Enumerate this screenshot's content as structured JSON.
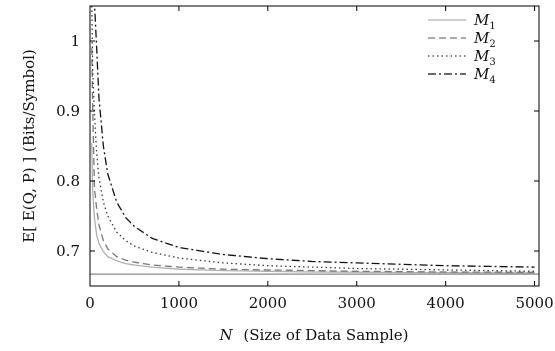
{
  "chart_data": {
    "type": "line",
    "title": "",
    "xlabel": {
      "symbol": "N",
      "text": "(Size of Data Sample)"
    },
    "ylabel": "E[ E(Q, P) ] (Bits/Symbol)",
    "xlim": [
      0,
      5050
    ],
    "ylim": [
      0.65,
      1.05
    ],
    "x_ticks": [
      0,
      1000,
      2000,
      3000,
      4000,
      5000
    ],
    "y_ticks": [
      0.7,
      0.8,
      0.9,
      1.0
    ],
    "x_tick_labels": [
      "0",
      "1000",
      "2000",
      "3000",
      "4000",
      "5000"
    ],
    "y_tick_labels": [
      "0.7",
      "0.8",
      "0.9",
      "1"
    ],
    "grid": false,
    "legend_position": "top-right",
    "baseline": 0.667,
    "x": [
      20,
      30,
      50,
      75,
      100,
      150,
      200,
      300,
      400,
      500,
      700,
      1000,
      1500,
      2000,
      2500,
      3000,
      3500,
      4000,
      4500,
      5000
    ],
    "series": [
      {
        "name": "M",
        "subscript": "1",
        "style": "solid",
        "color": "#b0b0b0",
        "values": [
          0.854,
          0.786,
          0.747,
          0.723,
          0.711,
          0.699,
          0.692,
          0.686,
          0.682,
          0.68,
          0.677,
          0.674,
          0.672,
          0.671,
          0.67,
          0.6697,
          0.6693,
          0.6691,
          0.6689,
          0.6687
        ]
      },
      {
        "name": "M",
        "subscript": "2",
        "style": "dashed",
        "color": "#7a7a7a",
        "values": [
          0.99,
          0.906,
          0.79,
          0.76,
          0.738,
          0.715,
          0.703,
          0.692,
          0.687,
          0.684,
          0.68,
          0.677,
          0.674,
          0.673,
          0.672,
          0.671,
          0.6705,
          0.67,
          0.6698,
          0.6695
        ]
      },
      {
        "name": "M",
        "subscript": "3",
        "style": "dotted",
        "color": "#3a3a3a",
        "values": [
          1.05,
          0.96,
          0.895,
          0.84,
          0.805,
          0.77,
          0.75,
          0.727,
          0.715,
          0.707,
          0.698,
          0.69,
          0.683,
          0.679,
          0.677,
          0.675,
          0.674,
          0.673,
          0.672,
          0.671
        ]
      },
      {
        "name": "M",
        "subscript": "4",
        "style": "dashdot",
        "color": "#111111",
        "values": [
          1.06,
          1.06,
          1.055,
          0.99,
          0.92,
          0.85,
          0.81,
          0.77,
          0.748,
          0.735,
          0.718,
          0.705,
          0.695,
          0.689,
          0.685,
          0.683,
          0.681,
          0.679,
          0.678,
          0.677
        ]
      }
    ]
  }
}
